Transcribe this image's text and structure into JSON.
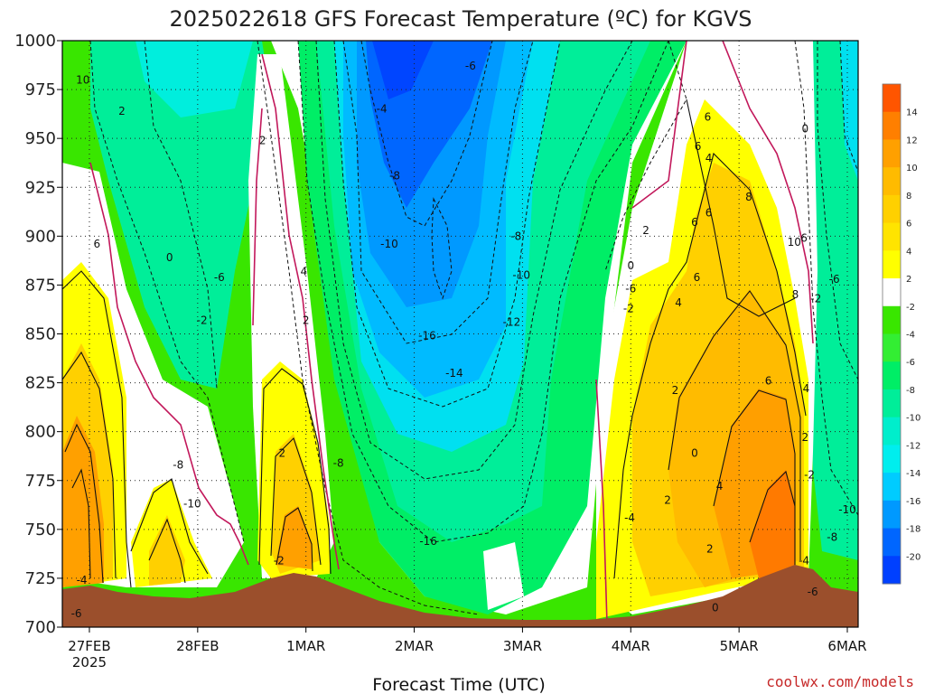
{
  "chart_data": {
    "type": "heatmap",
    "title": "2025022618 GFS Forecast Temperature (ºC) for KGVS",
    "xlabel": "Forecast Time (UTC)",
    "ylabel": "",
    "y_axis": {
      "levels": [
        "700",
        "725",
        "750",
        "775",
        "800",
        "825",
        "850",
        "875",
        "900",
        "925",
        "950",
        "975",
        "1000"
      ],
      "ylim": [
        1000,
        700
      ],
      "inverted": true
    },
    "x_axis": {
      "ticks": [
        {
          "label": "27FEB",
          "sub": "2025",
          "x": 0
        },
        {
          "label": "28FEB",
          "sub": "",
          "x": 1
        },
        {
          "label": "1MAR",
          "sub": "",
          "x": 2
        },
        {
          "label": "2MAR",
          "sub": "",
          "x": 3
        },
        {
          "label": "3MAR",
          "sub": "",
          "x": 4
        },
        {
          "label": "4MAR",
          "sub": "",
          "x": 5
        },
        {
          "label": "5MAR",
          "sub": "",
          "x": 6
        },
        {
          "label": "6MAR",
          "sub": "",
          "x": 7
        }
      ],
      "xlim": [
        -0.25,
        7.1
      ]
    },
    "grid": true,
    "colorbar": {
      "placement": "right",
      "labels": [
        "14",
        "12",
        "10",
        "8",
        "6",
        "4",
        "2",
        "-2",
        "-4",
        "-6",
        "-8",
        "-10",
        "-12",
        "-14",
        "-16",
        "-18",
        "-20"
      ],
      "colors": [
        "#ff5500",
        "#ff7f00",
        "#ffa000",
        "#ffbb00",
        "#ffd000",
        "#ffe400",
        "#ffff00",
        "#ffffff",
        "#39e600",
        "#33ee33",
        "#00ee66",
        "#00ee99",
        "#00eecc",
        "#00eeee",
        "#00ccff",
        "#0099ff",
        "#0066ff",
        "#0040ff"
      ]
    },
    "contour_labels": [
      {
        "t": "-6",
        "x": -0.12,
        "p": 707
      },
      {
        "t": "-4",
        "x": -0.07,
        "p": 724
      },
      {
        "t": "-10",
        "x": 0.95,
        "p": 763
      },
      {
        "t": "-8",
        "x": 0.82,
        "p": 783
      },
      {
        "t": "-2",
        "x": 1.75,
        "p": 734
      },
      {
        "t": "-8",
        "x": 2.3,
        "p": 784
      },
      {
        "t": "-16",
        "x": 3.13,
        "p": 744
      },
      {
        "t": "-14",
        "x": 3.37,
        "p": 830
      },
      {
        "t": "-16",
        "x": 3.12,
        "p": 849
      },
      {
        "t": "-12",
        "x": 3.9,
        "p": 856
      },
      {
        "t": "-10",
        "x": 3.99,
        "p": 880
      },
      {
        "t": "-10",
        "x": 2.77,
        "p": 896
      },
      {
        "t": "-8",
        "x": 3.94,
        "p": 900
      },
      {
        "t": "-8",
        "x": 2.82,
        "p": 931
      },
      {
        "t": "-6",
        "x": 3.52,
        "p": 987
      },
      {
        "t": "-4",
        "x": 2.7,
        "p": 965
      },
      {
        "t": "-4",
        "x": 4.99,
        "p": 756
      },
      {
        "t": "-6",
        "x": 5.0,
        "p": 873
      },
      {
        "t": "-2",
        "x": 4.98,
        "p": 863
      },
      {
        "t": "0",
        "x": 5.0,
        "p": 885
      },
      {
        "t": "2",
        "x": 5.14,
        "p": 903
      },
      {
        "t": "2",
        "x": 5.34,
        "p": 765
      },
      {
        "t": "0",
        "x": 5.78,
        "p": 710
      },
      {
        "t": "2",
        "x": 5.73,
        "p": 740
      },
      {
        "t": "0",
        "x": 5.59,
        "p": 789
      },
      {
        "t": "2",
        "x": 5.41,
        "p": 821
      },
      {
        "t": "4",
        "x": 5.82,
        "p": 772
      },
      {
        "t": "6",
        "x": 6.27,
        "p": 826
      },
      {
        "t": "4",
        "x": 5.44,
        "p": 866
      },
      {
        "t": "6",
        "x": 5.61,
        "p": 879
      },
      {
        "t": "6",
        "x": 5.59,
        "p": 907
      },
      {
        "t": "6",
        "x": 5.72,
        "p": 912
      },
      {
        "t": "8",
        "x": 6.09,
        "p": 920
      },
      {
        "t": "4",
        "x": 5.72,
        "p": 940
      },
      {
        "t": "6",
        "x": 5.62,
        "p": 946
      },
      {
        "t": "6",
        "x": 5.71,
        "p": 961
      },
      {
        "t": "10",
        "x": 6.51,
        "p": 897
      },
      {
        "t": "8",
        "x": 6.52,
        "p": 870
      },
      {
        "t": "6",
        "x": 6.6,
        "p": 899
      },
      {
        "t": "4",
        "x": 6.62,
        "p": 822
      },
      {
        "t": "2",
        "x": 6.61,
        "p": 797
      },
      {
        "t": "-2",
        "x": 6.71,
        "p": 868
      },
      {
        "t": "0",
        "x": 6.61,
        "p": 955
      },
      {
        "t": "-2",
        "x": 6.65,
        "p": 778
      },
      {
        "t": "-4",
        "x": 6.6,
        "p": 734
      },
      {
        "t": "-6",
        "x": 6.68,
        "p": 718
      },
      {
        "t": "-8",
        "x": 6.86,
        "p": 746
      },
      {
        "t": "-10",
        "x": 7.0,
        "p": 760
      },
      {
        "t": "-6",
        "x": 6.88,
        "p": 878
      },
      {
        "t": "2",
        "x": 1.78,
        "p": 789
      },
      {
        "t": "2",
        "x": 2.0,
        "p": 857
      },
      {
        "t": "4",
        "x": 1.98,
        "p": 882
      },
      {
        "t": "2",
        "x": 1.6,
        "p": 949
      },
      {
        "t": "-6",
        "x": 1.2,
        "p": 879
      },
      {
        "t": "-2",
        "x": 1.04,
        "p": 857
      },
      {
        "t": "0",
        "x": 0.74,
        "p": 889
      },
      {
        "t": "6",
        "x": 0.07,
        "p": 896
      },
      {
        "t": "2",
        "x": 0.3,
        "p": 964
      },
      {
        "t": "10",
        "x": -0.06,
        "p": 980
      }
    ],
    "terrain_color": "#9b4f2c"
  },
  "credit": "coolwx.com/models"
}
